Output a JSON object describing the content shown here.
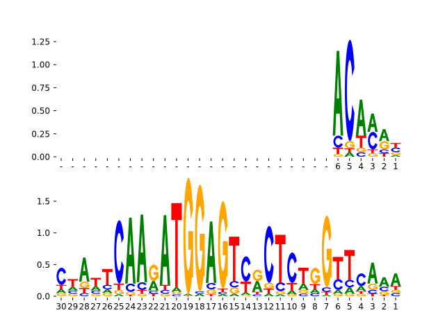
{
  "colors": {
    "A": "#008000",
    "C": "#0000ff",
    "G": "#ffa500",
    "T": "#ff0000"
  },
  "chart_data": [
    {
      "type": "sequence-logo",
      "ylim": [
        0,
        1.3
      ],
      "yticks": [
        "0.00",
        "0.25",
        "0.50",
        "0.75",
        "1.00",
        "1.25"
      ],
      "ytick_values": [
        0,
        0.25,
        0.5,
        0.75,
        1.0,
        1.25
      ],
      "xtick_labels": [
        "-",
        "-",
        "-",
        "-",
        "-",
        "-",
        "-",
        "-",
        "-",
        "-",
        "-",
        "-",
        "-",
        "-",
        "-",
        "-",
        "-",
        "-",
        "-",
        "-",
        "-",
        "-",
        "-",
        "-",
        "6",
        "5",
        "4",
        "3",
        "2",
        "1"
      ],
      "stacks": [
        [],
        [],
        [],
        [],
        [],
        [],
        [],
        [],
        [],
        [],
        [],
        [],
        [],
        [],
        [],
        [],
        [],
        [],
        [],
        [],
        [],
        [],
        [],
        [],
        [
          [
            "G",
            0.03
          ],
          [
            "T",
            0.07
          ],
          [
            "C",
            0.13
          ],
          [
            "A",
            0.92
          ]
        ],
        [
          [
            "A",
            0.05
          ],
          [
            "T",
            0.04
          ],
          [
            "G",
            0.08
          ],
          [
            "C",
            1.1
          ]
        ],
        [
          [
            "C",
            0.05
          ],
          [
            "G",
            0.05
          ],
          [
            "T",
            0.13
          ],
          [
            "A",
            0.39
          ]
        ],
        [
          [
            "G",
            0.04
          ],
          [
            "T",
            0.04
          ],
          [
            "C",
            0.19
          ],
          [
            "A",
            0.2
          ]
        ],
        [
          [
            "T",
            0.04
          ],
          [
            "C",
            0.04
          ],
          [
            "G",
            0.09
          ],
          [
            "A",
            0.13
          ]
        ],
        [
          [
            "A",
            0.02
          ],
          [
            "G",
            0.03
          ],
          [
            "C",
            0.05
          ],
          [
            "T",
            0.05
          ]
        ]
      ]
    },
    {
      "type": "sequence-logo",
      "ylim": [
        0,
        1.9
      ],
      "yticks": [
        "0.0",
        "0.5",
        "1.0",
        "1.5"
      ],
      "ytick_values": [
        0,
        0.5,
        1.0,
        1.5
      ],
      "xtick_labels": [
        "30",
        "29",
        "28",
        "27",
        "26",
        "25",
        "24",
        "23",
        "22",
        "21",
        "20",
        "19",
        "18",
        "17",
        "16",
        "15",
        "14",
        "13",
        "12",
        "11",
        "10",
        "9",
        "8",
        "7",
        "6",
        "5",
        "4",
        "3",
        "2",
        "1"
      ],
      "stacks": [
        [
          [
            "G",
            0.05
          ],
          [
            "A",
            0.06
          ],
          [
            "T",
            0.07
          ],
          [
            "C",
            0.27
          ]
        ],
        [
          [
            "G",
            0.04
          ],
          [
            "C",
            0.05
          ],
          [
            "A",
            0.06
          ],
          [
            "T",
            0.12
          ]
        ],
        [
          [
            "C",
            0.05
          ],
          [
            "T",
            0.08
          ],
          [
            "G",
            0.1
          ],
          [
            "A",
            0.38
          ]
        ],
        [
          [
            "G",
            0.04
          ],
          [
            "C",
            0.05
          ],
          [
            "A",
            0.07
          ],
          [
            "T",
            0.13
          ]
        ],
        [
          [
            "G",
            0.05
          ],
          [
            "A",
            0.06
          ],
          [
            "C",
            0.07
          ],
          [
            "T",
            0.25
          ]
        ],
        [
          [
            "A",
            0.03
          ],
          [
            "G",
            0.07
          ],
          [
            "T",
            0.1
          ],
          [
            "C",
            1.0
          ]
        ],
        [
          [
            "T",
            0.02
          ],
          [
            "G",
            0.05
          ],
          [
            "C",
            0.13
          ],
          [
            "A",
            1.04
          ]
        ],
        [
          [
            "G",
            0.04
          ],
          [
            "T",
            0.06
          ],
          [
            "C",
            0.12
          ],
          [
            "A",
            1.07
          ]
        ],
        [
          [
            "T",
            0.04
          ],
          [
            "C",
            0.05
          ],
          [
            "A",
            0.15
          ],
          [
            "G",
            0.26
          ]
        ],
        [
          [
            "G",
            0.04
          ],
          [
            "C",
            0.06
          ],
          [
            "T",
            0.08
          ],
          [
            "A",
            1.1
          ]
        ],
        [
          [
            "C",
            0.03
          ],
          [
            "G",
            0.04
          ],
          [
            "A",
            0.07
          ],
          [
            "T",
            1.33
          ]
        ],
        [
          [
            "T",
            0.01
          ],
          [
            "A",
            0.03
          ],
          [
            "G",
            1.83
          ]
        ],
        [
          [
            "A",
            0.04
          ],
          [
            "C",
            0.04
          ],
          [
            "G",
            1.68
          ]
        ],
        [
          [
            "T",
            0.03
          ],
          [
            "G",
            0.08
          ],
          [
            "C",
            0.1
          ],
          [
            "A",
            0.97
          ]
        ],
        [
          [
            "A",
            0.03
          ],
          [
            "C",
            0.04
          ],
          [
            "T",
            0.05
          ],
          [
            "G",
            1.38
          ]
        ],
        [
          [
            "A",
            0.04
          ],
          [
            "G",
            0.1
          ],
          [
            "C",
            0.1
          ],
          [
            "T",
            0.7
          ]
        ],
        [
          [
            "G",
            0.02
          ],
          [
            "A",
            0.04
          ],
          [
            "T",
            0.17
          ],
          [
            "C",
            0.4
          ]
        ],
        [
          [
            "C",
            0.03
          ],
          [
            "T",
            0.04
          ],
          [
            "A",
            0.17
          ],
          [
            "G",
            0.18
          ]
        ],
        [
          [
            "A",
            0.04
          ],
          [
            "T",
            0.08
          ],
          [
            "G",
            0.09
          ],
          [
            "C",
            0.9
          ]
        ],
        [
          [
            "A",
            0.03
          ],
          [
            "G",
            0.05
          ],
          [
            "C",
            0.14
          ],
          [
            "T",
            0.75
          ]
        ],
        [
          [
            "G",
            0.03
          ],
          [
            "A",
            0.06
          ],
          [
            "T",
            0.12
          ],
          [
            "C",
            0.48
          ]
        ],
        [
          [
            "C",
            0.04
          ],
          [
            "G",
            0.06
          ],
          [
            "A",
            0.1
          ],
          [
            "T",
            0.25
          ]
        ],
        [
          [
            "C",
            0.05
          ],
          [
            "A",
            0.06
          ],
          [
            "T",
            0.08
          ],
          [
            "G",
            0.26
          ]
        ],
        [
          [
            "A",
            0.02
          ],
          [
            "T",
            0.05
          ],
          [
            "C",
            0.07
          ],
          [
            "G",
            1.13
          ]
        ],
        [
          [
            "G",
            0.04
          ],
          [
            "A",
            0.06
          ],
          [
            "C",
            0.17
          ],
          [
            "T",
            0.35
          ]
        ],
        [
          [
            "G",
            0.04
          ],
          [
            "A",
            0.1
          ],
          [
            "C",
            0.12
          ],
          [
            "T",
            0.47
          ]
        ],
        [
          [
            "G",
            0.04
          ],
          [
            "T",
            0.04
          ],
          [
            "A",
            0.08
          ],
          [
            "C",
            0.2
          ]
        ],
        [
          [
            "T",
            0.04
          ],
          [
            "C",
            0.06
          ],
          [
            "G",
            0.1
          ],
          [
            "A",
            0.33
          ]
        ],
        [
          [
            "T",
            0.02
          ],
          [
            "G",
            0.06
          ],
          [
            "C",
            0.07
          ],
          [
            "A",
            0.15
          ]
        ],
        [
          [
            "C",
            0.05
          ],
          [
            "G",
            0.05
          ],
          [
            "T",
            0.06
          ],
          [
            "A",
            0.2
          ]
        ]
      ]
    }
  ]
}
